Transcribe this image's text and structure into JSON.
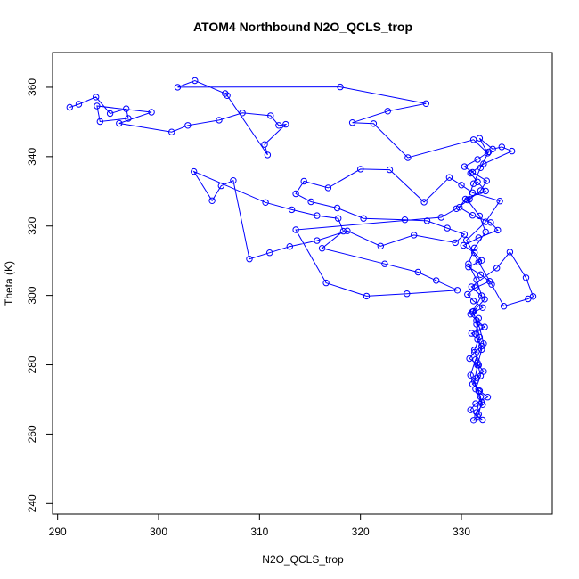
{
  "chart_data": {
    "type": "line",
    "title": "ATOM4 Northbound N2O_QCLS_trop",
    "xlabel": "N2O_QCLS_trop",
    "ylabel": "Theta (K)",
    "xlim": [
      289.5,
      339.0
    ],
    "ylim": [
      237.0,
      370.0
    ],
    "xticks": [
      290,
      300,
      310,
      320,
      330
    ],
    "yticks": [
      240,
      260,
      280,
      300,
      320,
      340,
      360
    ],
    "grid": false,
    "series": [
      {
        "name": "N2O_QCLS_trop",
        "color": "#0000ff",
        "marker": "open-circle",
        "x": [
          291.2,
          292.1,
          293.8,
          295.2,
          296.8,
          297.0,
          294.2,
          293.9,
          299.3,
          296.1,
          301.3,
          302.9,
          306.0,
          308.3,
          311.1,
          311.9,
          312.6,
          310.5,
          310.8,
          306.8,
          306.6,
          303.6,
          301.9,
          318.0,
          326.5,
          322.7,
          319.2,
          321.3,
          324.7,
          331.2,
          332.6,
          331.8,
          333.1,
          334.0,
          335.0,
          332.2,
          330.9,
          331.6,
          332.4,
          330.4,
          329.8,
          331.1,
          332.9,
          333.6,
          331.7,
          330.2,
          331.3,
          332.0,
          330.7,
          331.9,
          332.8,
          331.4,
          330.6,
          331.2,
          332.1,
          330.9,
          331.5,
          332.3,
          331.0,
          331.6,
          332.0,
          331.3,
          330.8,
          331.7,
          332.2,
          331.5,
          331.1,
          331.8,
          332.6,
          331.4,
          330.9,
          331.6,
          332.1,
          331.2,
          331.7,
          332.0,
          331.4,
          331.9,
          331.6,
          331.3,
          331.8,
          331.5,
          331.2,
          332.3,
          331.0,
          333.5,
          334.8,
          336.4,
          337.1,
          336.6,
          334.2,
          333.0,
          331.7,
          330.5,
          332.4,
          333.8,
          331.1,
          330.0,
          328.8,
          326.3,
          322.9,
          320.0,
          316.8,
          314.4,
          313.6,
          315.1,
          317.7,
          320.3,
          324.4,
          326.6,
          328.6,
          330.3,
          329.4,
          325.3,
          322.0,
          318.7,
          315.7,
          313.0,
          311.0,
          309.0,
          307.4,
          306.2,
          305.3,
          303.5,
          310.6,
          313.2,
          315.7,
          317.8,
          318.3,
          316.2,
          322.4,
          325.7,
          327.5,
          329.6,
          324.6,
          320.6,
          316.6,
          313.6,
          328.0,
          329.5,
          330.8,
          331.9,
          332.5,
          331.1,
          330.3,
          331.6,
          332.7,
          331.9,
          331.2,
          330.6,
          331.8,
          332.4,
          331.3,
          330.7,
          331.5,
          332.0,
          331.1,
          331.8,
          332.2,
          331.4,
          330.9,
          331.7,
          332.1,
          331.5,
          331.9,
          331.3,
          331.6,
          332.0,
          331.4,
          331.7
        ],
        "y": [
          354.2,
          355.1,
          357.2,
          352.4,
          353.8,
          351.0,
          350.1,
          354.6,
          352.8,
          349.6,
          347.1,
          349.0,
          350.5,
          352.6,
          351.8,
          349.0,
          349.3,
          343.5,
          340.5,
          357.6,
          358.2,
          361.9,
          360.0,
          360.1,
          355.3,
          353.1,
          349.8,
          349.5,
          339.7,
          344.9,
          341.0,
          345.3,
          342.2,
          342.8,
          341.6,
          337.9,
          335.2,
          332.7,
          330.1,
          327.8,
          325.4,
          323.1,
          321.0,
          318.8,
          316.6,
          314.4,
          312.3,
          310.1,
          308.2,
          306.0,
          304.1,
          302.2,
          300.3,
          298.4,
          296.5,
          294.6,
          292.8,
          290.9,
          289.1,
          287.3,
          285.4,
          283.6,
          281.8,
          279.9,
          278.1,
          276.2,
          274.4,
          272.5,
          270.7,
          268.8,
          267.0,
          265.2,
          264.1,
          264.0,
          265.7,
          269.2,
          273.0,
          276.8,
          280.6,
          284.3,
          288.0,
          291.7,
          295.4,
          298.9,
          302.5,
          307.9,
          312.5,
          305.1,
          299.7,
          299.0,
          296.9,
          303.2,
          309.6,
          315.9,
          321.2,
          327.2,
          329.6,
          331.8,
          334.0,
          326.9,
          336.2,
          336.4,
          331.0,
          332.9,
          329.3,
          327.0,
          325.2,
          322.2,
          321.8,
          321.5,
          319.4,
          317.6,
          315.2,
          317.4,
          314.2,
          318.6,
          315.8,
          314.1,
          312.3,
          310.5,
          333.1,
          331.6,
          327.3,
          335.7,
          326.8,
          324.7,
          323.0,
          322.2,
          318.5,
          313.6,
          309.1,
          306.7,
          304.3,
          301.5,
          300.5,
          299.8,
          303.6,
          318.9,
          322.5,
          325.0,
          327.7,
          330.2,
          333.0,
          335.5,
          337.1,
          339.2,
          341.4,
          336.8,
          332.2,
          327.5,
          322.9,
          318.3,
          313.7,
          309.1,
          304.5,
          299.9,
          295.3,
          290.7,
          286.1,
          281.5,
          277.0,
          272.4,
          268.5,
          266.3,
          270.8,
          275.3,
          279.9,
          284.4,
          288.9,
          293.4
        ]
      }
    ]
  }
}
